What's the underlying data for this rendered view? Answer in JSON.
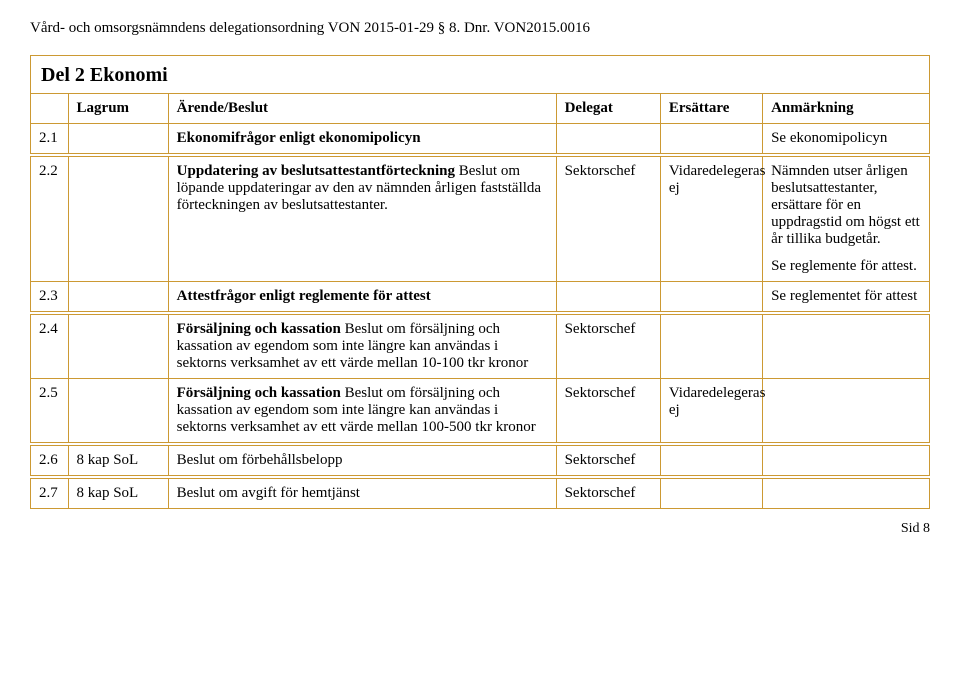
{
  "header": "Vård- och omsorgsnämndens delegationsordning VON 2015-01-29 § 8.  Dnr. VON2015.0016",
  "section_title": "Del 2 Ekonomi",
  "columns": {
    "lagrum": "Lagrum",
    "arende": "Ärende/Beslut",
    "delegat": "Delegat",
    "ersattare": "Ersättare",
    "anmarkning": "Anmärkning"
  },
  "rows": {
    "r1": {
      "num": "2.1",
      "lag": "",
      "arende_bold": "Ekonomifrågor enligt ekonomipolicyn",
      "arende_rest": "",
      "delegat": "",
      "ersattare": "",
      "anm1": "Se ekonomipolicyn",
      "anm2": ""
    },
    "r2": {
      "num": "2.2",
      "lag": "",
      "arende_bold": "Uppdatering av beslutsattestantförteckning",
      "arende_rest": " Beslut om löpande uppdateringar av den av nämnden årligen fastställda förteckningen av beslutsattestanter.",
      "delegat": "Sektorschef",
      "ersattare": "Vidaredelegeras ej",
      "anm1": "Nämnden utser årligen beslutsattestanter, ersättare för en uppdragstid om högst ett år tillika budgetår.",
      "anm2": "Se reglemente för attest."
    },
    "r3": {
      "num": "2.3",
      "lag": "",
      "arende_bold": "Attestfrågor enligt reglemente för attest",
      "arende_rest": "",
      "delegat": "",
      "ersattare": "",
      "anm1": "Se reglementet för attest",
      "anm2": ""
    },
    "r4": {
      "num": "2.4",
      "lag": "",
      "arende_bold": "Försäljning och kassation",
      "arende_rest": " Beslut om försäljning och kassation av egendom som inte längre kan användas i sektorns verksamhet av ett värde mellan 10-100 tkr kronor",
      "delegat": "Sektorschef",
      "ersattare": "",
      "anm1": "",
      "anm2": ""
    },
    "r5": {
      "num": "2.5",
      "lag": "",
      "arende_bold": "Försäljning och kassation",
      "arende_rest": " Beslut om försäljning och kassation av egendom som inte längre kan användas i sektorns verksamhet av ett värde mellan 100-500 tkr kronor",
      "delegat": "Sektorschef",
      "ersattare": "Vidaredelegeras ej",
      "anm1": "",
      "anm2": ""
    },
    "r6": {
      "num": "2.6",
      "lag": "8 kap SoL",
      "arende_bold": "",
      "arende_rest": "Beslut om förbehållsbelopp",
      "delegat": "Sektorschef",
      "ersattare": "",
      "anm1": "",
      "anm2": ""
    },
    "r7": {
      "num": "2.7",
      "lag": "8 kap SoL",
      "arende_bold": "",
      "arende_rest": "Beslut om avgift för hemtjänst",
      "delegat": "Sektorschef",
      "ersattare": "",
      "anm1": "",
      "anm2": ""
    }
  },
  "page_num": "Sid 8",
  "style": {
    "border_color": "#cc9933",
    "background_color": "#ffffff",
    "font_family": "Times New Roman",
    "title_fontsize": 20,
    "body_fontsize": 15
  }
}
